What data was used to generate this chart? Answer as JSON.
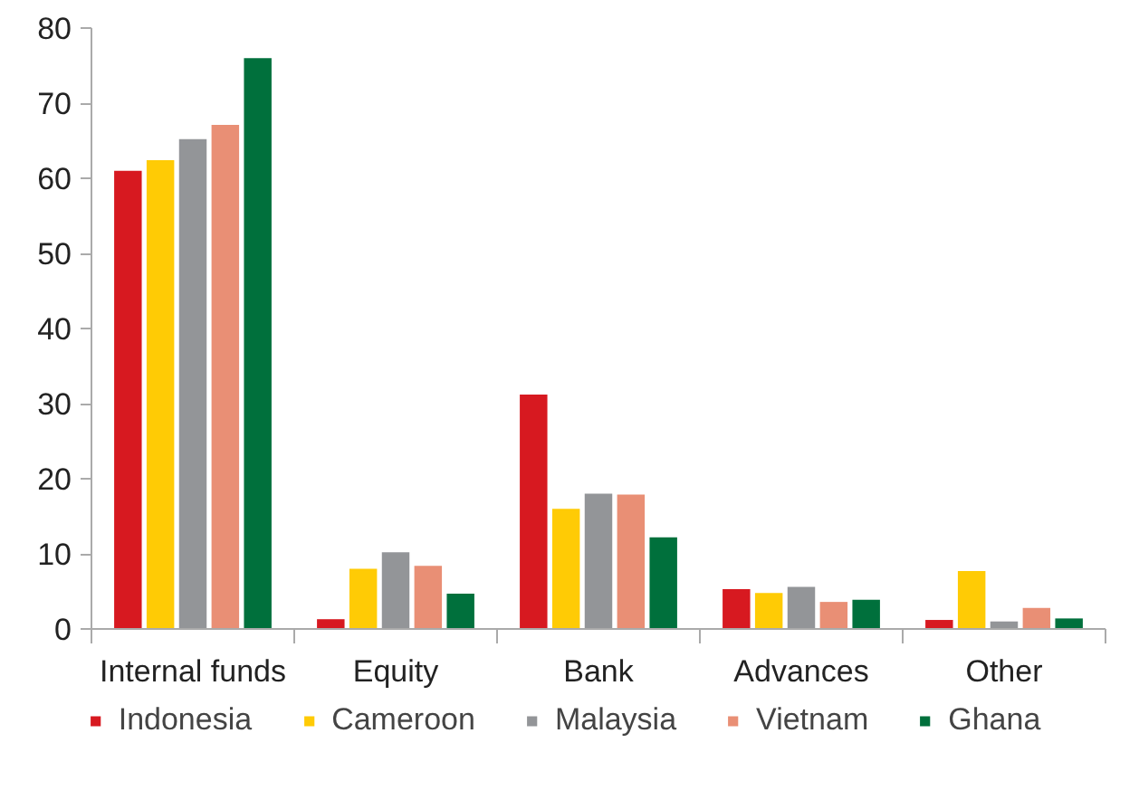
{
  "chart_data": {
    "type": "bar",
    "categories": [
      "Internal funds",
      "Equity",
      "Bank",
      "Advances",
      "Other"
    ],
    "series": [
      {
        "name": "Indonesia",
        "color": "#d71920",
        "values": [
          61,
          1.3,
          31.2,
          5.3,
          1.2
        ]
      },
      {
        "name": "Cameroon",
        "color": "#ffcb05",
        "values": [
          62.4,
          8,
          16,
          4.8,
          7.7
        ]
      },
      {
        "name": "Malaysia",
        "color": "#939598",
        "values": [
          65.2,
          10.2,
          18,
          5.6,
          1.0
        ]
      },
      {
        "name": "Vietnam",
        "color": "#e98f75",
        "values": [
          67.1,
          8.4,
          17.9,
          3.6,
          2.8
        ]
      },
      {
        "name": "Ghana",
        "color": "#00703c",
        "values": [
          76,
          4.7,
          12.2,
          3.9,
          1.4
        ]
      }
    ],
    "ylim": [
      0,
      80
    ],
    "yticks": [
      0,
      10,
      20,
      30,
      40,
      50,
      60,
      70,
      80
    ],
    "grid": false,
    "legend": "bottom"
  }
}
